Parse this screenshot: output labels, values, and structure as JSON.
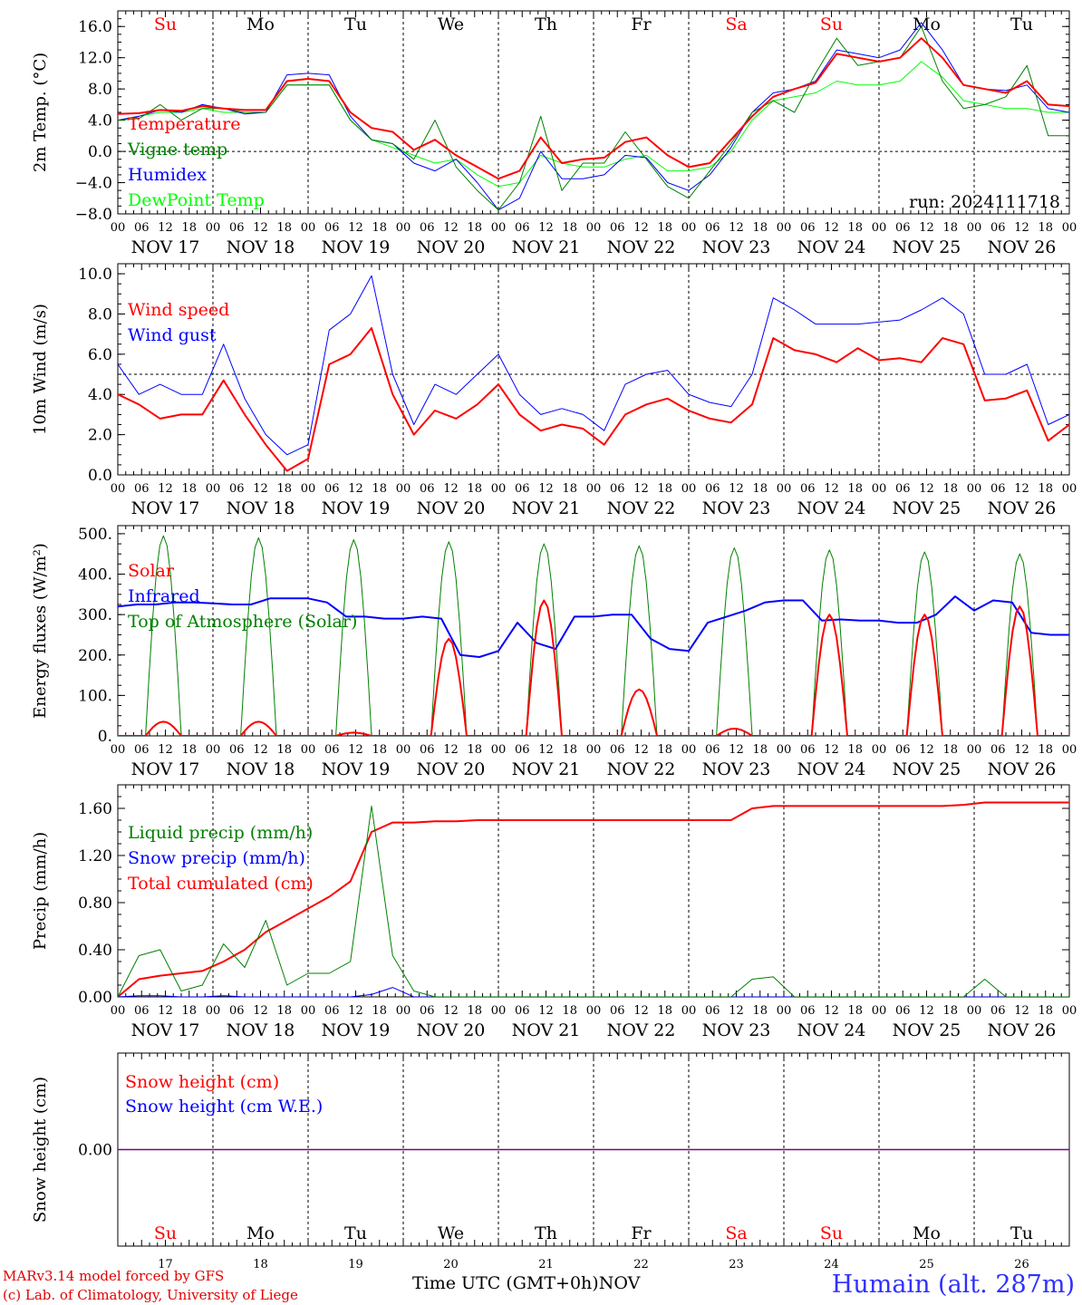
{
  "chart_data": {
    "type": "line",
    "x_start": "2024-11-17 00 UTC",
    "x_end": "2024-11-27 00 UTC",
    "day_letters": [
      {
        "label": "Su",
        "color": "#ff0000"
      },
      {
        "label": "Mo",
        "color": "#000000"
      },
      {
        "label": "Tu",
        "color": "#000000"
      },
      {
        "label": "We",
        "color": "#000000"
      },
      {
        "label": "Th",
        "color": "#000000"
      },
      {
        "label": "Fr",
        "color": "#000000"
      },
      {
        "label": "Sa",
        "color": "#ff0000"
      },
      {
        "label": "Su",
        "color": "#ff0000"
      },
      {
        "label": "Mo",
        "color": "#000000"
      },
      {
        "label": "Tu",
        "color": "#000000"
      }
    ],
    "day_labels": [
      "NOV 17",
      "NOV 18",
      "NOV 19",
      "NOV 20",
      "NOV 21",
      "NOV 22",
      "NOV 23",
      "NOV 24",
      "NOV 25",
      "NOV 26"
    ],
    "day_numbers": [
      "17",
      "18",
      "19",
      "20",
      "21",
      "22",
      "23",
      "24",
      "25",
      "26"
    ],
    "hour_labels": [
      "00",
      "06",
      "12",
      "18"
    ],
    "final_hour_label": "00",
    "x_title": "Time UTC (GMT+0h)",
    "x_title_month": "NOV",
    "panels": [
      {
        "id": "temperature",
        "ylabel": "2m Temp. (°C)",
        "ylim": [
          -8,
          18
        ],
        "yticks": [
          {
            "v": 16,
            "label": "16.0"
          },
          {
            "v": 12,
            "label": "12.0"
          },
          {
            "v": 8,
            "label": "8.0"
          },
          {
            "v": 4,
            "label": "4.0"
          },
          {
            "v": 0,
            "label": "0.0"
          },
          {
            "v": -4,
            "label": "−4.0"
          },
          {
            "v": -8,
            "label": "−8.0"
          }
        ],
        "ref_line": 0,
        "show_day_letters": true,
        "annotation": "run: 2024111718",
        "series": [
          {
            "name": "Temperature",
            "color": "#ff0000",
            "width": 2,
            "values": [
              4.8,
              4.9,
              5.3,
              5.2,
              5.8,
              5.5,
              5.3,
              5.3,
              9.0,
              9.3,
              9.0,
              5.0,
              3.0,
              2.5,
              0.2,
              1.5,
              -0.5,
              -2.0,
              -3.5,
              -2.5,
              1.8,
              -1.5,
              -1.0,
              -0.8,
              1.2,
              1.8,
              -0.5,
              -2.0,
              -1.5,
              1.5,
              4.5,
              7.0,
              8.0,
              8.8,
              12.5,
              12.0,
              11.5,
              12.0,
              14.5,
              12.0,
              8.5,
              8.0,
              7.5,
              9.0,
              6.0,
              5.8
            ]
          },
          {
            "name": "Vigne temp",
            "color": "#008000",
            "width": 1,
            "values": [
              4.0,
              4.2,
              6.0,
              4.0,
              5.5,
              5.5,
              5.0,
              5.0,
              8.5,
              8.5,
              8.5,
              4.0,
              1.5,
              1.0,
              -1.0,
              4.0,
              -2.0,
              -5.0,
              -7.5,
              -4.0,
              4.5,
              -5.0,
              -1.5,
              -1.5,
              2.5,
              -1.0,
              -4.5,
              -6.0,
              -2.5,
              1.0,
              5.0,
              6.5,
              5.0,
              10.0,
              14.5,
              11.0,
              11.5,
              12.0,
              16.0,
              9.0,
              5.5,
              6.0,
              7.0,
              11.0,
              2.0,
              2.0
            ]
          },
          {
            "name": "Humidex",
            "color": "#0000ff",
            "width": 1,
            "values": [
              4.0,
              4.5,
              5.3,
              5.0,
              6.0,
              5.5,
              4.8,
              5.0,
              9.8,
              10.0,
              9.8,
              4.5,
              1.5,
              1.0,
              -1.5,
              -2.5,
              -1.0,
              -4.0,
              -7.5,
              -6.0,
              0.0,
              -3.5,
              -3.5,
              -3.0,
              -0.5,
              -0.8,
              -4.0,
              -5.0,
              -3.0,
              0.5,
              5.0,
              7.5,
              8.0,
              9.0,
              13.0,
              12.5,
              12.0,
              13.0,
              16.5,
              13.0,
              8.5,
              8.0,
              7.8,
              8.5,
              5.5,
              5.0
            ]
          },
          {
            "name": "DewPoint Temp",
            "color": "#00ff00",
            "width": 1,
            "values": [
              4.0,
              4.5,
              5.0,
              5.0,
              5.5,
              5.0,
              5.0,
              5.0,
              8.5,
              8.5,
              8.5,
              4.0,
              1.5,
              0.5,
              -0.5,
              -1.5,
              -1.0,
              -3.0,
              -4.5,
              -4.0,
              -0.5,
              -1.5,
              -2.0,
              -2.0,
              -1.0,
              -0.5,
              -2.5,
              -2.5,
              -2.0,
              0.0,
              4.0,
              6.5,
              7.0,
              7.5,
              9.0,
              8.5,
              8.5,
              9.0,
              11.5,
              9.5,
              6.5,
              6.0,
              5.5,
              5.5,
              5.0,
              5.0
            ]
          }
        ]
      },
      {
        "id": "wind",
        "ylabel": "10m Wind (m/s)",
        "ylim": [
          0,
          10
        ],
        "yticks": [
          {
            "v": 10,
            "label": "10.0"
          },
          {
            "v": 8,
            "label": "8.0"
          },
          {
            "v": 6,
            "label": "6.0"
          },
          {
            "v": 4,
            "label": "4.0"
          },
          {
            "v": 2,
            "label": "2.0"
          },
          {
            "v": 0,
            "label": "0.0"
          }
        ],
        "ref_line": 5,
        "series": [
          {
            "name": "Wind speed",
            "color": "#ff0000",
            "width": 2,
            "values": [
              4.0,
              3.5,
              2.8,
              3.0,
              3.0,
              4.7,
              3.0,
              1.5,
              0.2,
              0.8,
              5.5,
              6.0,
              7.3,
              4.0,
              2.0,
              3.2,
              2.8,
              3.5,
              4.5,
              3.0,
              2.2,
              2.5,
              2.3,
              1.5,
              3.0,
              3.5,
              3.8,
              3.2,
              2.8,
              2.6,
              3.5,
              6.8,
              6.2,
              6.0,
              5.6,
              6.3,
              5.7,
              5.8,
              5.6,
              6.8,
              6.5,
              3.7,
              3.8,
              4.2,
              1.7,
              2.5
            ]
          },
          {
            "name": "Wind gust",
            "color": "#0000ff",
            "width": 1,
            "values": [
              5.5,
              4.0,
              4.5,
              4.0,
              4.0,
              6.5,
              3.8,
              2.0,
              1.0,
              1.5,
              7.2,
              8.0,
              9.9,
              5.0,
              2.5,
              4.5,
              4.0,
              5.0,
              6.0,
              4.0,
              3.0,
              3.3,
              3.0,
              2.2,
              4.5,
              5.0,
              5.2,
              4.0,
              3.6,
              3.4,
              5.0,
              8.8,
              8.2,
              7.5,
              7.5,
              7.5,
              7.6,
              7.7,
              8.2,
              8.8,
              8.0,
              5.0,
              5.0,
              5.5,
              2.5,
              3.0
            ]
          }
        ]
      },
      {
        "id": "energy",
        "ylabel": "Energy fluxes (W/m²)",
        "ylim": [
          0,
          500
        ],
        "yticks": [
          {
            "v": 500,
            "label": "500."
          },
          {
            "v": 400,
            "label": "400."
          },
          {
            "v": 300,
            "label": "300."
          },
          {
            "v": 200,
            "label": "200."
          },
          {
            "v": 100,
            "label": "100."
          },
          {
            "v": 0,
            "label": "0."
          }
        ],
        "series": [
          {
            "name": "Solar",
            "color": "#ff0000",
            "width": 2,
            "day_peaks": [
              35,
              35,
              8,
              240,
              335,
              115,
              18,
              300,
              300,
              320
            ]
          },
          {
            "name": "Infrared",
            "color": "#0000ff",
            "width": 2,
            "values": [
              320,
              325,
              325,
              330,
              330,
              328,
              325,
              325,
              340,
              340,
              340,
              330,
              295,
              295,
              290,
              290,
              295,
              290,
              200,
              195,
              210,
              280,
              230,
              215,
              295,
              295,
              300,
              300,
              240,
              215,
              210,
              280,
              295,
              310,
              330,
              335,
              335,
              285,
              288,
              285,
              285,
              280,
              280,
              300,
              345,
              310,
              335,
              330,
              255,
              250,
              250
            ]
          },
          {
            "name": "Top of Atmosphere (Solar)",
            "color": "#008000",
            "width": 1,
            "day_peaks": [
              495,
              490,
              485,
              480,
              475,
              470,
              465,
              460,
              455,
              450
            ]
          }
        ]
      },
      {
        "id": "precip",
        "ylabel": "Precip (mm/h)",
        "ylim": [
          0,
          1.8
        ],
        "yticks": [
          {
            "v": 1.6,
            "label": "1.60"
          },
          {
            "v": 1.2,
            "label": "1.20"
          },
          {
            "v": 0.8,
            "label": "0.80"
          },
          {
            "v": 0.4,
            "label": "0.40"
          },
          {
            "v": 0.0,
            "label": "0.00"
          }
        ],
        "series": [
          {
            "name": "Liquid precip (mm/h)",
            "color": "#008000",
            "width": 1,
            "values": [
              0.0,
              0.35,
              0.4,
              0.05,
              0.1,
              0.45,
              0.25,
              0.65,
              0.1,
              0.2,
              0.2,
              0.3,
              1.62,
              0.35,
              0.05,
              0.0,
              0.0,
              0.0,
              0.0,
              0.0,
              0.0,
              0.0,
              0.0,
              0.0,
              0.0,
              0.0,
              0.0,
              0.0,
              0.0,
              0.0,
              0.15,
              0.17,
              0.0,
              0.0,
              0.0,
              0.0,
              0.0,
              0.0,
              0.0,
              0.0,
              0.0,
              0.15,
              0.0,
              0.0,
              0.0,
              0.0
            ]
          },
          {
            "name": "Snow precip (mm/h)",
            "color": "#0000ff",
            "width": 1,
            "values": [
              0.0,
              0.01,
              0.01,
              0.0,
              0.0,
              0.01,
              0.0,
              0.0,
              0.0,
              0.0,
              0.0,
              0.0,
              0.02,
              0.08,
              0.0,
              0.0,
              0.0,
              0.0,
              0.0,
              0.0,
              0.0,
              0.0,
              0.0,
              0.0,
              0.0,
              0.0,
              0.0,
              0.0,
              0.0,
              0.0,
              0.0,
              0.0,
              0.0,
              0.0,
              0.0,
              0.0,
              0.0,
              0.0,
              0.0,
              0.0,
              0.0,
              0.0,
              0.0,
              0.0,
              0.0,
              0.0
            ]
          },
          {
            "name": "Total cumulated (cm)",
            "color": "#ff0000",
            "width": 2,
            "values": [
              0.0,
              0.15,
              0.18,
              0.2,
              0.22,
              0.3,
              0.4,
              0.55,
              0.65,
              0.75,
              0.85,
              0.98,
              1.4,
              1.48,
              1.48,
              1.49,
              1.49,
              1.5,
              1.5,
              1.5,
              1.5,
              1.5,
              1.5,
              1.5,
              1.5,
              1.5,
              1.5,
              1.5,
              1.5,
              1.5,
              1.6,
              1.62,
              1.62,
              1.62,
              1.62,
              1.62,
              1.62,
              1.62,
              1.62,
              1.62,
              1.63,
              1.65,
              1.65,
              1.65,
              1.65,
              1.65
            ]
          }
        ]
      },
      {
        "id": "snow",
        "ylabel": "Snow height (cm)",
        "ylim": [
          -1,
          1
        ],
        "yticks": [
          {
            "v": 0,
            "label": "0.00"
          }
        ],
        "show_bottom_letters": true,
        "series": [
          {
            "name": "Snow height (cm)",
            "color": "#ff0000",
            "width": 1,
            "values": [
              0,
              0
            ]
          },
          {
            "name": "Snow height (cm W.E.)",
            "color": "#0000ff",
            "width": 1,
            "values": [
              0,
              0
            ]
          }
        ]
      }
    ]
  },
  "footer": {
    "model": "MARv3.14 model forced by GFS",
    "copyright": "(c) Lab. of Climatology, University of Liege",
    "station": "Humain (alt. 287m)"
  },
  "colors": {
    "axis": "#000000",
    "grid": "#000000",
    "text": "#000000"
  }
}
